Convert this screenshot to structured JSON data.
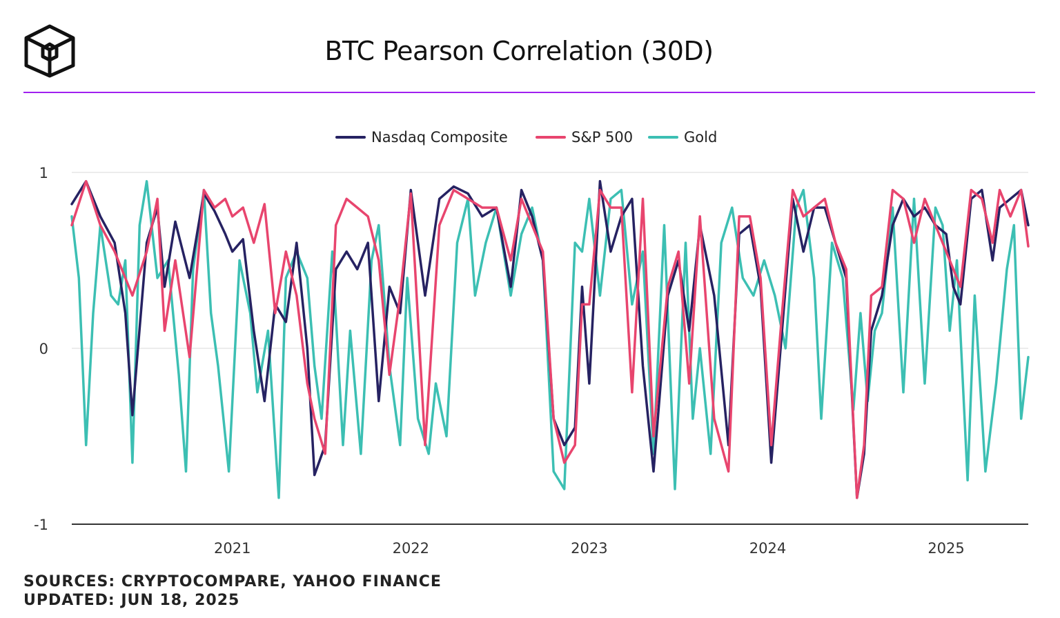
{
  "header": {
    "title": "BTC Pearson Correlation (30D)",
    "logo_icon": "cube-logo-icon"
  },
  "footer": {
    "sources": "SOURCES: CRYPTOCOMPARE, YAHOO FINANCE",
    "updated": "UPDATED: JUN 18, 2025"
  },
  "colors": {
    "nasdaq": "#262262",
    "sp500": "#e8456e",
    "gold": "#3cbfb3",
    "accent": "#a020f0"
  },
  "chart_data": {
    "type": "line",
    "title": "BTC Pearson Correlation (30D)",
    "xlabel": "",
    "ylabel": "",
    "xlim": [
      2020.1,
      2025.46
    ],
    "ylim": [
      -1,
      1
    ],
    "y_ticks": [
      {
        "value": 1,
        "label": "1"
      },
      {
        "value": 0,
        "label": "0"
      },
      {
        "value": -1,
        "label": "-1"
      }
    ],
    "x_ticks": [
      {
        "value": 2021,
        "label": "2021"
      },
      {
        "value": 2022,
        "label": "2022"
      },
      {
        "value": 2023,
        "label": "2023"
      },
      {
        "value": 2024,
        "label": "2024"
      },
      {
        "value": 2025,
        "label": "2025"
      }
    ],
    "grid": true,
    "legend": "top-center",
    "series": [
      {
        "name": "Nasdaq Composite",
        "color": "#262262",
        "x": [
          2020.1,
          2020.18,
          2020.26,
          2020.34,
          2020.4,
          2020.44,
          2020.52,
          2020.58,
          2020.62,
          2020.68,
          2020.76,
          2020.84,
          2020.9,
          2020.96,
          2021.0,
          2021.06,
          2021.12,
          2021.18,
          2021.24,
          2021.3,
          2021.36,
          2021.42,
          2021.46,
          2021.52,
          2021.58,
          2021.64,
          2021.7,
          2021.76,
          2021.82,
          2021.88,
          2021.94,
          2022.0,
          2022.08,
          2022.16,
          2022.24,
          2022.32,
          2022.4,
          2022.48,
          2022.56,
          2022.62,
          2022.68,
          2022.74,
          2022.8,
          2022.86,
          2022.92,
          2022.96,
          2023.0,
          2023.06,
          2023.12,
          2023.18,
          2023.24,
          2023.3,
          2023.36,
          2023.44,
          2023.5,
          2023.56,
          2023.62,
          2023.7,
          2023.78,
          2023.84,
          2023.9,
          2023.96,
          2024.02,
          2024.08,
          2024.14,
          2024.2,
          2024.26,
          2024.32,
          2024.38,
          2024.44,
          2024.5,
          2024.54,
          2024.58,
          2024.64,
          2024.7,
          2024.76,
          2024.82,
          2024.88,
          2024.94,
          2025.0,
          2025.04,
          2025.08,
          2025.14,
          2025.2,
          2025.26,
          2025.3,
          2025.36,
          2025.42,
          2025.46
        ],
        "values": [
          0.82,
          0.95,
          0.75,
          0.6,
          0.2,
          -0.38,
          0.6,
          0.8,
          0.35,
          0.72,
          0.4,
          0.88,
          0.78,
          0.65,
          0.55,
          0.62,
          0.1,
          -0.3,
          0.25,
          0.15,
          0.6,
          0.0,
          -0.72,
          -0.55,
          0.45,
          0.55,
          0.45,
          0.6,
          -0.3,
          0.35,
          0.2,
          0.9,
          0.3,
          0.85,
          0.92,
          0.88,
          0.75,
          0.8,
          0.35,
          0.9,
          0.75,
          0.5,
          -0.4,
          -0.55,
          -0.45,
          0.35,
          -0.2,
          0.95,
          0.55,
          0.75,
          0.85,
          -0.1,
          -0.7,
          0.3,
          0.5,
          0.1,
          0.7,
          0.3,
          -0.55,
          0.65,
          0.7,
          0.35,
          -0.65,
          0.1,
          0.85,
          0.55,
          0.8,
          0.8,
          0.6,
          0.4,
          -0.85,
          -0.6,
          0.1,
          0.3,
          0.7,
          0.85,
          0.75,
          0.8,
          0.7,
          0.65,
          0.35,
          0.25,
          0.85,
          0.9,
          0.5,
          0.8,
          0.85,
          0.9,
          0.7
        ]
      },
      {
        "name": "S&P 500",
        "color": "#e8456e",
        "x": [
          2020.1,
          2020.18,
          2020.26,
          2020.34,
          2020.4,
          2020.44,
          2020.52,
          2020.58,
          2020.62,
          2020.68,
          2020.76,
          2020.84,
          2020.9,
          2020.96,
          2021.0,
          2021.06,
          2021.12,
          2021.18,
          2021.24,
          2021.3,
          2021.36,
          2021.42,
          2021.46,
          2021.52,
          2021.58,
          2021.64,
          2021.7,
          2021.76,
          2021.82,
          2021.88,
          2021.94,
          2022.0,
          2022.08,
          2022.16,
          2022.24,
          2022.32,
          2022.4,
          2022.48,
          2022.56,
          2022.62,
          2022.68,
          2022.74,
          2022.8,
          2022.86,
          2022.92,
          2022.96,
          2023.0,
          2023.06,
          2023.12,
          2023.18,
          2023.24,
          2023.3,
          2023.36,
          2023.44,
          2023.5,
          2023.56,
          2023.62,
          2023.7,
          2023.78,
          2023.84,
          2023.9,
          2023.96,
          2024.02,
          2024.08,
          2024.14,
          2024.2,
          2024.26,
          2024.32,
          2024.38,
          2024.44,
          2024.5,
          2024.54,
          2024.58,
          2024.64,
          2024.7,
          2024.76,
          2024.82,
          2024.88,
          2024.94,
          2025.0,
          2025.04,
          2025.08,
          2025.14,
          2025.2,
          2025.26,
          2025.3,
          2025.36,
          2025.42,
          2025.46
        ],
        "values": [
          0.7,
          0.95,
          0.7,
          0.55,
          0.4,
          0.3,
          0.55,
          0.85,
          0.1,
          0.5,
          -0.05,
          0.9,
          0.8,
          0.85,
          0.75,
          0.8,
          0.6,
          0.82,
          0.2,
          0.55,
          0.3,
          -0.2,
          -0.4,
          -0.6,
          0.7,
          0.85,
          0.8,
          0.75,
          0.5,
          -0.15,
          0.3,
          0.88,
          -0.55,
          0.7,
          0.9,
          0.85,
          0.8,
          0.8,
          0.5,
          0.85,
          0.7,
          0.55,
          -0.4,
          -0.65,
          -0.55,
          0.25,
          0.25,
          0.9,
          0.8,
          0.8,
          -0.25,
          0.85,
          -0.5,
          0.35,
          0.55,
          -0.2,
          0.75,
          -0.4,
          -0.7,
          0.75,
          0.75,
          0.4,
          -0.55,
          0.2,
          0.9,
          0.75,
          0.8,
          0.85,
          0.6,
          0.45,
          -0.85,
          -0.55,
          0.3,
          0.35,
          0.9,
          0.85,
          0.6,
          0.85,
          0.7,
          0.55,
          0.45,
          0.35,
          0.9,
          0.85,
          0.6,
          0.9,
          0.75,
          0.9,
          0.58
        ]
      },
      {
        "name": "Gold",
        "color": "#3cbfb3",
        "x": [
          2020.1,
          2020.14,
          2020.18,
          2020.22,
          2020.26,
          2020.32,
          2020.36,
          2020.4,
          2020.44,
          2020.48,
          2020.52,
          2020.58,
          2020.64,
          2020.7,
          2020.74,
          2020.78,
          2020.84,
          2020.88,
          2020.92,
          2020.98,
          2021.04,
          2021.1,
          2021.14,
          2021.2,
          2021.26,
          2021.3,
          2021.36,
          2021.42,
          2021.46,
          2021.5,
          2021.56,
          2021.62,
          2021.66,
          2021.72,
          2021.78,
          2021.82,
          2021.88,
          2021.94,
          2021.98,
          2022.04,
          2022.1,
          2022.14,
          2022.2,
          2022.26,
          2022.32,
          2022.36,
          2022.42,
          2022.48,
          2022.56,
          2022.62,
          2022.68,
          2022.74,
          2022.8,
          2022.86,
          2022.92,
          2022.96,
          2023.0,
          2023.06,
          2023.12,
          2023.18,
          2023.24,
          2023.3,
          2023.36,
          2023.42,
          2023.48,
          2023.54,
          2023.58,
          2023.62,
          2023.68,
          2023.74,
          2023.8,
          2023.86,
          2023.92,
          2023.98,
          2024.04,
          2024.1,
          2024.16,
          2024.2,
          2024.26,
          2024.3,
          2024.36,
          2024.42,
          2024.48,
          2024.52,
          2024.56,
          2024.6,
          2024.64,
          2024.7,
          2024.76,
          2024.82,
          2024.88,
          2024.94,
          2024.98,
          2025.02,
          2025.06,
          2025.12,
          2025.16,
          2025.22,
          2025.28,
          2025.34,
          2025.38,
          2025.42,
          2025.46
        ],
        "values": [
          0.75,
          0.4,
          -0.55,
          0.2,
          0.7,
          0.3,
          0.25,
          0.5,
          -0.65,
          0.7,
          0.95,
          0.4,
          0.5,
          -0.15,
          -0.7,
          0.45,
          0.9,
          0.2,
          -0.1,
          -0.7,
          0.5,
          0.2,
          -0.25,
          0.1,
          -0.85,
          0.4,
          0.55,
          0.4,
          -0.1,
          -0.4,
          0.55,
          -0.55,
          0.1,
          -0.6,
          0.5,
          0.7,
          -0.1,
          -0.55,
          0.4,
          -0.4,
          -0.6,
          -0.2,
          -0.5,
          0.6,
          0.85,
          0.3,
          0.6,
          0.8,
          0.3,
          0.65,
          0.8,
          0.5,
          -0.7,
          -0.8,
          0.6,
          0.55,
          0.85,
          0.3,
          0.85,
          0.9,
          0.25,
          0.55,
          -0.6,
          0.7,
          -0.8,
          0.6,
          -0.4,
          0.0,
          -0.6,
          0.6,
          0.8,
          0.4,
          0.3,
          0.5,
          0.3,
          0.0,
          0.8,
          0.9,
          0.4,
          -0.4,
          0.6,
          0.4,
          -0.35,
          0.2,
          -0.3,
          0.1,
          0.2,
          0.8,
          -0.25,
          0.85,
          -0.2,
          0.8,
          0.7,
          0.1,
          0.5,
          -0.75,
          0.3,
          -0.7,
          -0.2,
          0.45,
          0.7,
          -0.4,
          -0.05
        ]
      }
    ]
  }
}
